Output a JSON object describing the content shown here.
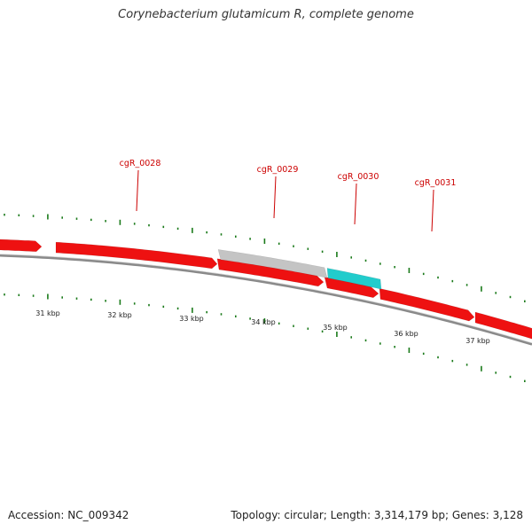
{
  "title": "Corynebacterium glutamicum R, complete genome",
  "footer": {
    "accession": "Accession: NC_009342",
    "summary": "Topology: circular; Length: 3,314,179 bp; Genes: 3,128"
  },
  "colors": {
    "gene": "#ee1111",
    "gene_dark": "#b00000",
    "highlight_grey": "#c4c4c4",
    "highlight_cyan": "#22cccc",
    "tick": "#1a7a1a",
    "backbone": "#8a8a8a",
    "label": "#cc0000"
  },
  "gene_labels": [
    "cgR_0028",
    "cgR_0029",
    "cgR_0030",
    "cgR_0031"
  ],
  "scale_labels": [
    "31 kbp",
    "32 kbp",
    "33 kbp",
    "34 kbp",
    "35 kbp",
    "36 kbp",
    "37 kbp"
  ]
}
